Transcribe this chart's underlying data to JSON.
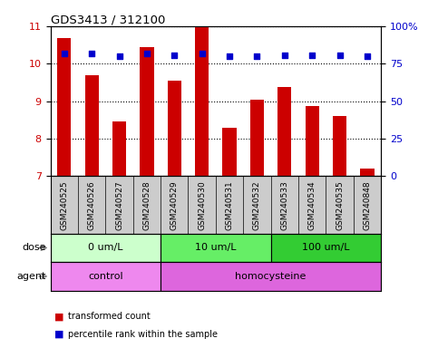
{
  "title": "GDS3413 / 312100",
  "samples": [
    "GSM240525",
    "GSM240526",
    "GSM240527",
    "GSM240528",
    "GSM240529",
    "GSM240530",
    "GSM240531",
    "GSM240532",
    "GSM240533",
    "GSM240534",
    "GSM240535",
    "GSM240848"
  ],
  "transformed_counts": [
    10.7,
    9.7,
    8.45,
    10.45,
    9.55,
    11.0,
    8.3,
    9.05,
    9.38,
    8.88,
    8.6,
    7.2
  ],
  "percentile_ranks": [
    82,
    82,
    80,
    82,
    81,
    82,
    80,
    80,
    81,
    81,
    81,
    80
  ],
  "ylim_left": [
    7,
    11
  ],
  "ylim_right": [
    0,
    100
  ],
  "yticks_left": [
    7,
    8,
    9,
    10,
    11
  ],
  "yticks_right": [
    0,
    25,
    50,
    75,
    100
  ],
  "bar_color": "#cc0000",
  "dot_color": "#0000cc",
  "dose_groups": [
    {
      "label": "0 um/L",
      "start": 0,
      "end": 4,
      "color": "#ccffcc"
    },
    {
      "label": "10 um/L",
      "start": 4,
      "end": 8,
      "color": "#66ee66"
    },
    {
      "label": "100 um/L",
      "start": 8,
      "end": 12,
      "color": "#33cc33"
    }
  ],
  "agent_groups": [
    {
      "label": "control",
      "start": 0,
      "end": 4,
      "color": "#ee88ee"
    },
    {
      "label": "homocysteine",
      "start": 4,
      "end": 12,
      "color": "#dd66dd"
    }
  ],
  "dose_label": "dose",
  "agent_label": "agent",
  "legend_bar_label": "transformed count",
  "legend_dot_label": "percentile rank within the sample",
  "tick_label_color_left": "#cc0000",
  "tick_label_color_right": "#0000cc",
  "sample_bg_color": "#cccccc",
  "sample_label_fontsize": 6.5,
  "xlabel_separator_color": "#000000"
}
